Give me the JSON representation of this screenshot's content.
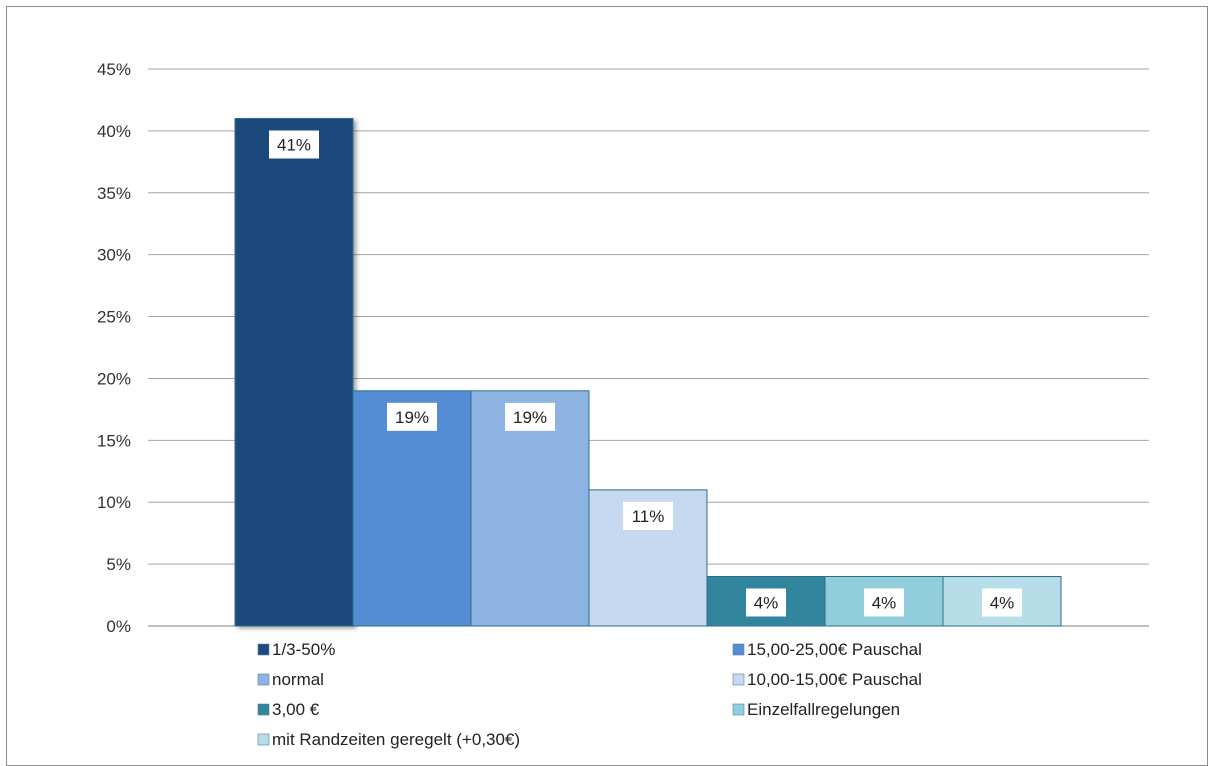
{
  "chart_data": {
    "type": "bar",
    "categories": [
      "1/3-50%",
      "15,00-25,00€ Pauschal",
      "normal",
      "10,00-15,00€ Pauschal",
      "3,00 €",
      "Einzelfallregelungen",
      "mit Randzeiten geregelt (+0,30€)"
    ],
    "values": [
      41,
      19,
      19,
      11,
      4,
      4,
      4
    ],
    "data_labels": [
      "41%",
      "19%",
      "19%",
      "11%",
      "4%",
      "4%",
      "4%"
    ],
    "colors": [
      "#1f4a7c",
      "#548dd4",
      "#8db3e2",
      "#c6d9f1",
      "#31859c",
      "#92cddc",
      "#b7dde8"
    ],
    "ylim": [
      0,
      45
    ],
    "yticks": [
      0,
      5,
      10,
      15,
      20,
      25,
      30,
      35,
      40,
      45
    ],
    "ytick_labels": [
      "0%",
      "5%",
      "10%",
      "15%",
      "20%",
      "25%",
      "30%",
      "35%",
      "40%",
      "45%"
    ],
    "grid": true,
    "legend_position": "bottom",
    "legend": [
      {
        "label": "1/3-50%",
        "color": "#1f4a7c"
      },
      {
        "label": "15,00-25,00€ Pauschal",
        "color": "#548dd4"
      },
      {
        "label": "normal",
        "color": "#8db3e2"
      },
      {
        "label": "10,00-15,00€ Pauschal",
        "color": "#c6d9f1"
      },
      {
        "label": "3,00 €",
        "color": "#31859c"
      },
      {
        "label": "Einzelfallregelungen",
        "color": "#92cddc"
      },
      {
        "label": "mit Randzeiten geregelt (+0,30€)",
        "color": "#b7dde8"
      }
    ],
    "title": "",
    "xlabel": "",
    "ylabel": ""
  }
}
